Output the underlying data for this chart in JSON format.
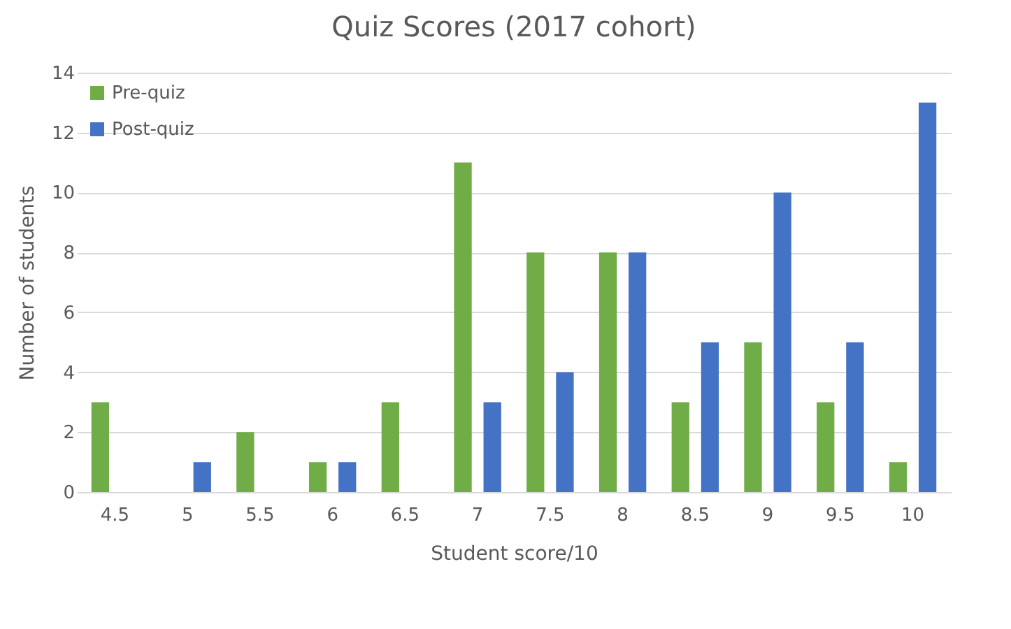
{
  "chart_data": {
    "type": "bar",
    "title": "Quiz Scores (2017 cohort)",
    "xlabel": "Student score/10",
    "ylabel": "Number of students",
    "categories": [
      "4.5",
      "5",
      "5.5",
      "6",
      "6.5",
      "7",
      "7.5",
      "8",
      "8.5",
      "9",
      "9.5",
      "10"
    ],
    "series": [
      {
        "name": "Pre-quiz",
        "color": "#70ad47",
        "values": [
          3,
          0,
          2,
          1,
          3,
          11,
          8,
          8,
          3,
          5,
          3,
          1
        ]
      },
      {
        "name": "Post-quiz",
        "color": "#4472c4",
        "values": [
          0,
          1,
          0,
          1,
          0,
          3,
          4,
          8,
          5,
          10,
          5,
          13
        ]
      }
    ],
    "ylim": [
      0,
      14
    ],
    "yticks": [
      0,
      2,
      4,
      6,
      8,
      10,
      12,
      14
    ],
    "grid": "y",
    "legend": "top left"
  }
}
